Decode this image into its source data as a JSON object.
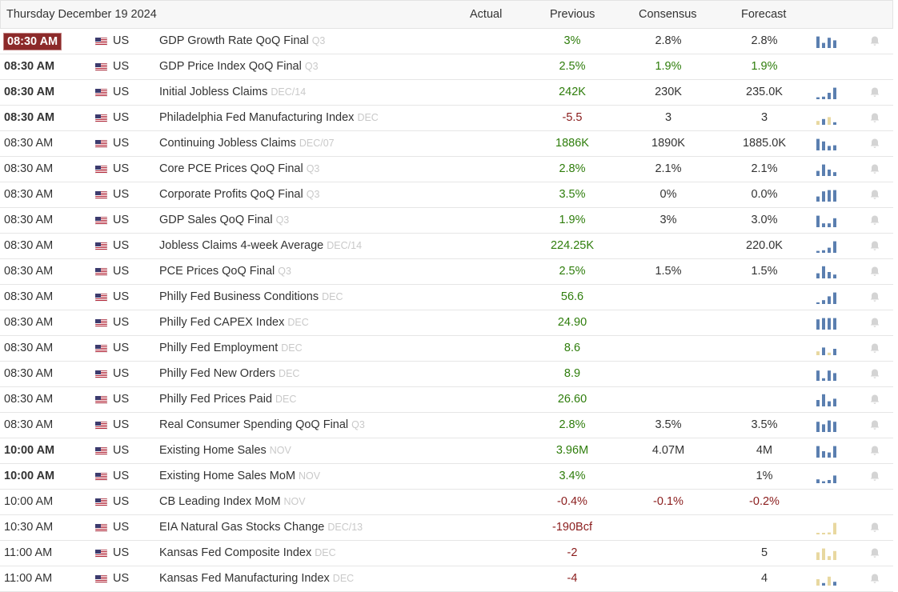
{
  "header": {
    "date": "Thursday December 19 2024",
    "actual": "Actual",
    "previous": "Previous",
    "consensus": "Consensus",
    "forecast": "Forecast"
  },
  "colors": {
    "positive": "#2e7d0b",
    "negative": "#8a1c1c",
    "highlight_time": "#8c2a2a",
    "spark_blue": "#5b7fb0",
    "spark_tan": "#e8d8a0"
  },
  "rows": [
    {
      "time": "08:30 AM",
      "style": "hl",
      "country": "US",
      "event": "GDP Growth Rate QoQ Final",
      "ref": "Q3",
      "prev": "3%",
      "prevTone": "pos",
      "cons": "2.8%",
      "fcst": "2.8%",
      "spark": {
        "color": "blue",
        "values": [
          0.9,
          0.4,
          0.8,
          0.6
        ]
      },
      "bell": true
    },
    {
      "time": "08:30 AM",
      "style": "bold",
      "country": "US",
      "event": "GDP Price Index QoQ Final",
      "ref": "Q3",
      "prev": "2.5%",
      "prevTone": "pos",
      "cons": "1.9%",
      "consTone": "pos",
      "fcst": "1.9%",
      "fcstTone": "pos",
      "spark": null,
      "bell": false
    },
    {
      "time": "08:30 AM",
      "style": "bold",
      "country": "US",
      "event": "Initial Jobless Claims",
      "ref": "DEC/14",
      "prev": "242K",
      "prevTone": "pos",
      "cons": "230K",
      "fcst": "235.0K",
      "spark": {
        "color": "blue",
        "values": [
          0.15,
          0.2,
          0.5,
          0.9
        ]
      },
      "bell": true
    },
    {
      "time": "08:30 AM",
      "style": "bold",
      "country": "US",
      "event": "Philadelphia Fed Manufacturing Index",
      "ref": "DEC",
      "prev": "-5.5",
      "prevTone": "neg",
      "cons": "3",
      "fcst": "3",
      "spark": {
        "color": "mixed",
        "values": [
          0.3,
          0.45,
          0.6,
          0.2
        ]
      },
      "bell": true
    },
    {
      "time": "08:30 AM",
      "style": "",
      "country": "US",
      "event": "Continuing Jobless Claims",
      "ref": "DEC/07",
      "prev": "1886K",
      "prevTone": "pos",
      "cons": "1890K",
      "fcst": "1885.0K",
      "spark": {
        "color": "blue",
        "values": [
          0.9,
          0.7,
          0.35,
          0.4
        ]
      },
      "bell": true
    },
    {
      "time": "08:30 AM",
      "style": "",
      "country": "US",
      "event": "Core PCE Prices QoQ Final",
      "ref": "Q3",
      "prev": "2.8%",
      "prevTone": "pos",
      "cons": "2.1%",
      "fcst": "2.1%",
      "spark": {
        "color": "blue",
        "values": [
          0.4,
          0.9,
          0.5,
          0.3
        ]
      },
      "bell": true
    },
    {
      "time": "08:30 AM",
      "style": "",
      "country": "US",
      "event": "Corporate Profits QoQ Final",
      "ref": "Q3",
      "prev": "3.5%",
      "prevTone": "pos",
      "cons": "0%",
      "fcst": "0.0%",
      "spark": {
        "color": "blue",
        "values": [
          0.4,
          0.8,
          0.9,
          0.9
        ]
      },
      "bell": true
    },
    {
      "time": "08:30 AM",
      "style": "",
      "country": "US",
      "event": "GDP Sales QoQ Final",
      "ref": "Q3",
      "prev": "1.9%",
      "prevTone": "pos",
      "cons": "3%",
      "fcst": "3.0%",
      "spark": {
        "color": "blue",
        "values": [
          0.9,
          0.3,
          0.3,
          0.7
        ]
      },
      "bell": true
    },
    {
      "time": "08:30 AM",
      "style": "",
      "country": "US",
      "event": "Jobless Claims 4-week Average",
      "ref": "DEC/14",
      "prev": "224.25K",
      "prevTone": "pos",
      "cons": "",
      "fcst": "220.0K",
      "spark": {
        "color": "blue",
        "values": [
          0.15,
          0.2,
          0.4,
          0.9
        ]
      },
      "bell": true
    },
    {
      "time": "08:30 AM",
      "style": "",
      "country": "US",
      "event": "PCE Prices QoQ Final",
      "ref": "Q3",
      "prev": "2.5%",
      "prevTone": "pos",
      "cons": "1.5%",
      "fcst": "1.5%",
      "spark": {
        "color": "blue",
        "values": [
          0.4,
          0.95,
          0.5,
          0.3
        ]
      },
      "bell": true
    },
    {
      "time": "08:30 AM",
      "style": "",
      "country": "US",
      "event": "Philly Fed Business Conditions",
      "ref": "DEC",
      "prev": "56.6",
      "prevTone": "pos",
      "cons": "",
      "fcst": "",
      "spark": {
        "color": "blue",
        "values": [
          0.1,
          0.3,
          0.6,
          0.9
        ]
      },
      "bell": true
    },
    {
      "time": "08:30 AM",
      "style": "",
      "country": "US",
      "event": "Philly Fed CAPEX Index",
      "ref": "DEC",
      "prev": "24.90",
      "prevTone": "pos",
      "cons": "",
      "fcst": "",
      "spark": {
        "color": "blue",
        "values": [
          0.8,
          0.9,
          0.9,
          0.9
        ]
      },
      "bell": true
    },
    {
      "time": "08:30 AM",
      "style": "",
      "country": "US",
      "event": "Philly Fed Employment",
      "ref": "DEC",
      "prev": "8.6",
      "prevTone": "pos",
      "cons": "",
      "fcst": "",
      "spark": {
        "color": "mixed",
        "values": [
          0.3,
          0.6,
          0.2,
          0.5
        ]
      },
      "bell": true
    },
    {
      "time": "08:30 AM",
      "style": "",
      "country": "US",
      "event": "Philly Fed New Orders",
      "ref": "DEC",
      "prev": "8.9",
      "prevTone": "pos",
      "cons": "",
      "fcst": "",
      "spark": {
        "color": "blue",
        "values": [
          0.8,
          0.2,
          0.8,
          0.6
        ]
      },
      "bell": true
    },
    {
      "time": "08:30 AM",
      "style": "",
      "country": "US",
      "event": "Philly Fed Prices Paid",
      "ref": "DEC",
      "prev": "26.60",
      "prevTone": "pos",
      "cons": "",
      "fcst": "",
      "spark": {
        "color": "blue",
        "values": [
          0.5,
          0.95,
          0.4,
          0.6
        ]
      },
      "bell": true
    },
    {
      "time": "08:30 AM",
      "style": "",
      "country": "US",
      "event": "Real Consumer Spending QoQ Final",
      "ref": "Q3",
      "prev": "2.8%",
      "prevTone": "pos",
      "cons": "3.5%",
      "fcst": "3.5%",
      "spark": {
        "color": "blue",
        "values": [
          0.8,
          0.6,
          0.9,
          0.8
        ]
      },
      "bell": true
    },
    {
      "time": "10:00 AM",
      "style": "bold",
      "country": "US",
      "event": "Existing Home Sales",
      "ref": "NOV",
      "prev": "3.96M",
      "prevTone": "pos",
      "cons": "4.07M",
      "fcst": "4M",
      "spark": {
        "color": "blue",
        "values": [
          0.9,
          0.5,
          0.4,
          0.9
        ]
      },
      "bell": true
    },
    {
      "time": "10:00 AM",
      "style": "bold",
      "country": "US",
      "event": "Existing Home Sales MoM",
      "ref": "NOV",
      "prev": "3.4%",
      "prevTone": "pos",
      "cons": "",
      "fcst": "1%",
      "spark": {
        "color": "blue",
        "values": [
          0.3,
          0.15,
          0.25,
          0.6
        ]
      },
      "bell": true
    },
    {
      "time": "10:00 AM",
      "style": "",
      "country": "US",
      "event": "CB Leading Index MoM",
      "ref": "NOV",
      "prev": "-0.4%",
      "prevTone": "neg",
      "cons": "-0.1%",
      "consTone": "neg",
      "fcst": "-0.2%",
      "fcstTone": "neg",
      "spark": null,
      "bell": false
    },
    {
      "time": "10:30 AM",
      "style": "",
      "country": "US",
      "event": "EIA Natural Gas Stocks Change",
      "ref": "DEC/13",
      "prev": "-190Bcf",
      "prevTone": "neg",
      "cons": "",
      "fcst": "",
      "spark": {
        "color": "tan",
        "values": [
          0.1,
          0.1,
          0.15,
          0.9
        ]
      },
      "bell": true
    },
    {
      "time": "11:00 AM",
      "style": "",
      "country": "US",
      "event": "Kansas Fed Composite Index",
      "ref": "DEC",
      "prev": "-2",
      "prevTone": "neg",
      "cons": "",
      "fcst": "5",
      "spark": {
        "color": "tan",
        "values": [
          0.6,
          0.9,
          0.3,
          0.7
        ]
      },
      "bell": true
    },
    {
      "time": "11:00 AM",
      "style": "",
      "country": "US",
      "event": "Kansas Fed Manufacturing Index",
      "ref": "DEC",
      "prev": "-4",
      "prevTone": "neg",
      "cons": "",
      "fcst": "4",
      "spark": {
        "color": "mixed",
        "values": [
          0.5,
          0.2,
          0.7,
          0.3
        ]
      },
      "bell": true
    }
  ]
}
